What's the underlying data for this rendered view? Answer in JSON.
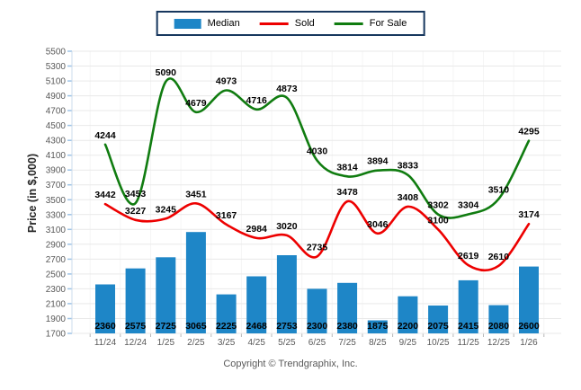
{
  "y_axis": {
    "title": "Price (in $,000)",
    "min": 1700,
    "max": 5500,
    "step": 200
  },
  "footer": {
    "copyright": "Copyright © Trendgraphix, Inc."
  },
  "colors": {
    "median_bar": "#1e86c7",
    "sold_line": "#ed0000",
    "forsale_line": "#107c10",
    "legend_border": "#17375e",
    "gridline": "#e9e9e9",
    "column_line": "#f5f5f5",
    "y_tick": "#9dc3e6",
    "x_tick": "#b7b7b7",
    "axis_text": "#595959",
    "data_label": "#000000"
  },
  "chart_data": {
    "type": "combo",
    "title": "",
    "xlabel": "",
    "ylabel": "Price (in $,000)",
    "ylim": [
      1700,
      5500
    ],
    "ytick_step": 200,
    "grid": "horizontal",
    "legend_position": "top-center",
    "categories": [
      "11/24",
      "12/24",
      "1/25",
      "2/25",
      "3/25",
      "4/25",
      "5/25",
      "6/25",
      "7/25",
      "8/25",
      "9/25",
      "10/25",
      "11/25",
      "12/25",
      "1/26"
    ],
    "series": [
      {
        "name": "Median",
        "type": "bar",
        "color": "#1e86c7",
        "values": [
          2360,
          2575,
          2725,
          3065,
          2225,
          2468,
          2753,
          2300,
          2380,
          1875,
          2200,
          2075,
          2415,
          2080,
          2600
        ]
      },
      {
        "name": "Sold",
        "type": "line",
        "color": "#ed0000",
        "values": [
          3442,
          3227,
          3245,
          3451,
          3167,
          2984,
          3020,
          2735,
          3478,
          3046,
          3408,
          3100,
          2619,
          2610,
          3174
        ]
      },
      {
        "name": "For Sale",
        "type": "line",
        "color": "#107c10",
        "values": [
          4244,
          3453,
          5090,
          4679,
          4973,
          4716,
          4873,
          4030,
          3814,
          3894,
          3833,
          3302,
          3304,
          3510,
          4295
        ]
      }
    ]
  }
}
